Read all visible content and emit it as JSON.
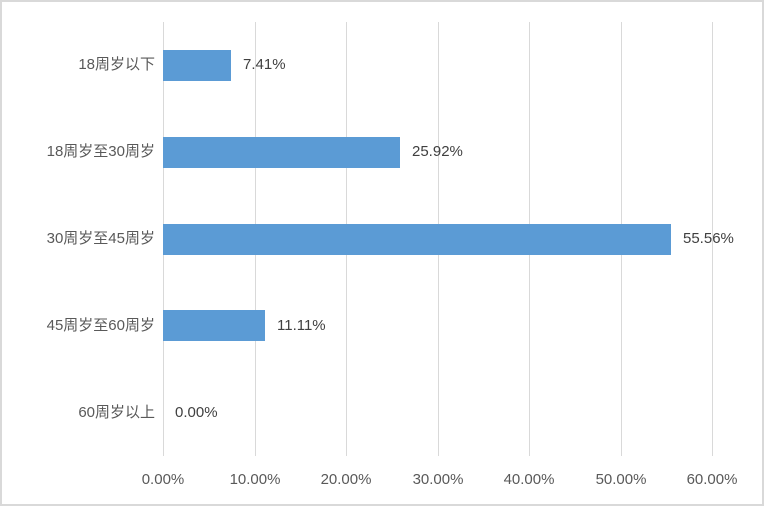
{
  "chart": {
    "background_color": "#FFFFFF",
    "frame_border_color": "#D9D9D9",
    "bar_color": "#5B9BD5",
    "gridline_color": "#D9D9D9",
    "category_text_color": "#595959",
    "value_text_color": "#404040"
  },
  "chart_data": {
    "type": "bar",
    "orientation": "horizontal",
    "title": "",
    "xlabel": "",
    "ylabel": "",
    "categories": [
      "18周岁以下",
      "18周岁至30周岁",
      "30周岁至45周岁",
      "45周岁至60周岁",
      "60周岁以上"
    ],
    "values": [
      7.41,
      25.92,
      55.56,
      11.11,
      0.0
    ],
    "data_labels": [
      "7.41%",
      "25.92%",
      "55.56%",
      "11.11%",
      "0.00%"
    ],
    "x_ticks": [
      0,
      10,
      20,
      30,
      40,
      50,
      60
    ],
    "x_tick_labels": [
      "0.00%",
      "10.00%",
      "20.00%",
      "30.00%",
      "40.00%",
      "50.00%",
      "60.00%"
    ],
    "xlim": [
      0,
      60
    ],
    "grid": true,
    "legend": false
  }
}
